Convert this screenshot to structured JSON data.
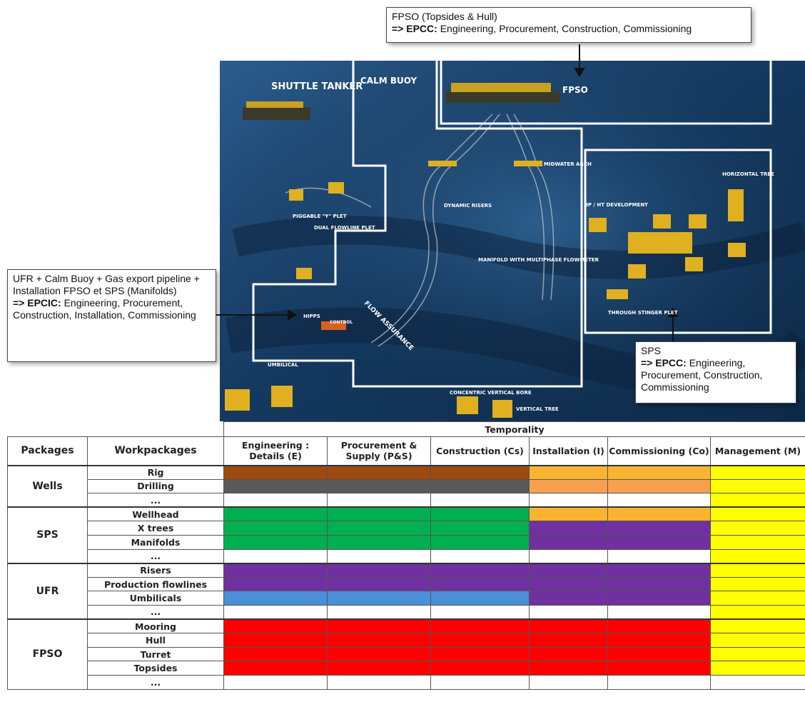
{
  "callouts": {
    "fpso": {
      "title": "FPSO (Topsides & Hull)",
      "lead": "=> EPCC:",
      "text": " Engineering, Procurement, Construction, Commissioning"
    },
    "ufr": {
      "title": "UFR + Calm Buoy + Gas export pipeline + Installation FPSO et SPS (Manifolds)",
      "lead": "=> EPCIC:",
      "text": " Engineering, Procurement, Construction, Installation, Commissioning"
    },
    "sps": {
      "title": "SPS",
      "lead": "=> EPCC:",
      "text": " Engineering, Procurement, Construction, Commissioning"
    }
  },
  "image_labels": [
    "SHUTTLE TANKER",
    "CALM BUOY",
    "FPSO",
    "MIDWATER ARCH",
    "HORIZONTAL TREE",
    "HP / HT DEVELOPMENT",
    "DYNAMIC RISERS",
    "PIGGABLE \"Y\" PLET",
    "DUAL FLOWLINE PLET",
    "MANIFOLD WITH MULTIPHASE FLOWMETER",
    "HIPPS",
    "CONTROL",
    "FLOW ASSURANCE",
    "THROUGH STINGER PLET",
    "UMBILICAL",
    "VERTICAL TREE",
    "CONCENTRIC VERTICAL BORE"
  ],
  "table": {
    "group_header": "Temporality",
    "headers": [
      "Packages",
      "Workpackages",
      "Engineering : Details (E)",
      "Procurement & Supply (P&S)",
      "Construction (Cs)",
      "Installation (I)",
      "Commissioning (Co)",
      "Management (M)"
    ],
    "packages": [
      {
        "name": "Wells",
        "workpackages": [
          {
            "name": "Rig",
            "cells": [
              "#9c4a10",
              "#9c4a10",
              "#9c4a10",
              "#f9b530",
              "#f9b530",
              "#ffff00"
            ]
          },
          {
            "name": "Drilling",
            "cells": [
              "#595959",
              "#595959",
              "#595959",
              "#f9a050",
              "#f9a050",
              "#ffff00"
            ]
          },
          {
            "name": "...",
            "cells": [
              null,
              null,
              null,
              null,
              null,
              "#ffff00"
            ]
          }
        ]
      },
      {
        "name": "SPS",
        "workpackages": [
          {
            "name": "Wellhead",
            "cells": [
              "#00b050",
              "#00b050",
              "#00b050",
              "#f9b530",
              "#f9b530",
              "#ffff00"
            ]
          },
          {
            "name": "X trees",
            "cells": [
              "#00b050",
              "#00b050",
              "#00b050",
              "#7030a0",
              "#7030a0",
              "#ffff00"
            ]
          },
          {
            "name": "Manifolds",
            "cells": [
              "#00b050",
              "#00b050",
              "#00b050",
              "#7030a0",
              "#7030a0",
              "#ffff00"
            ]
          },
          {
            "name": "...",
            "cells": [
              null,
              null,
              null,
              null,
              null,
              "#ffff00"
            ]
          }
        ]
      },
      {
        "name": "UFR",
        "workpackages": [
          {
            "name": "Risers",
            "cells": [
              "#7030a0",
              "#7030a0",
              "#7030a0",
              "#7030a0",
              "#7030a0",
              "#ffff00"
            ]
          },
          {
            "name": "Production flowlines",
            "cells": [
              "#7030a0",
              "#7030a0",
              "#7030a0",
              "#7030a0",
              "#7030a0",
              "#ffff00"
            ]
          },
          {
            "name": "Umbilicals",
            "cells": [
              "#4a90d9",
              "#4a90d9",
              "#4a90d9",
              "#7030a0",
              "#7030a0",
              "#ffff00"
            ]
          },
          {
            "name": "...",
            "cells": [
              null,
              null,
              null,
              null,
              null,
              "#ffff00"
            ]
          }
        ]
      },
      {
        "name": "FPSO",
        "workpackages": [
          {
            "name": "Mooring",
            "cells": [
              "#ff0000",
              "#ff0000",
              "#ff0000",
              "#ff0000",
              "#ff0000",
              "#ffff00"
            ]
          },
          {
            "name": "Hull",
            "cells": [
              "#ff0000",
              "#ff0000",
              "#ff0000",
              "#ff0000",
              "#ff0000",
              "#ffff00"
            ]
          },
          {
            "name": "Turret",
            "cells": [
              "#ff0000",
              "#ff0000",
              "#ff0000",
              "#ff0000",
              "#ff0000",
              "#ffff00"
            ]
          },
          {
            "name": "Topsides",
            "cells": [
              "#ff0000",
              "#ff0000",
              "#ff0000",
              "#ff0000",
              "#ff0000",
              "#ffff00"
            ]
          },
          {
            "name": "...",
            "cells": [
              null,
              null,
              null,
              null,
              null,
              null
            ]
          }
        ]
      }
    ]
  }
}
